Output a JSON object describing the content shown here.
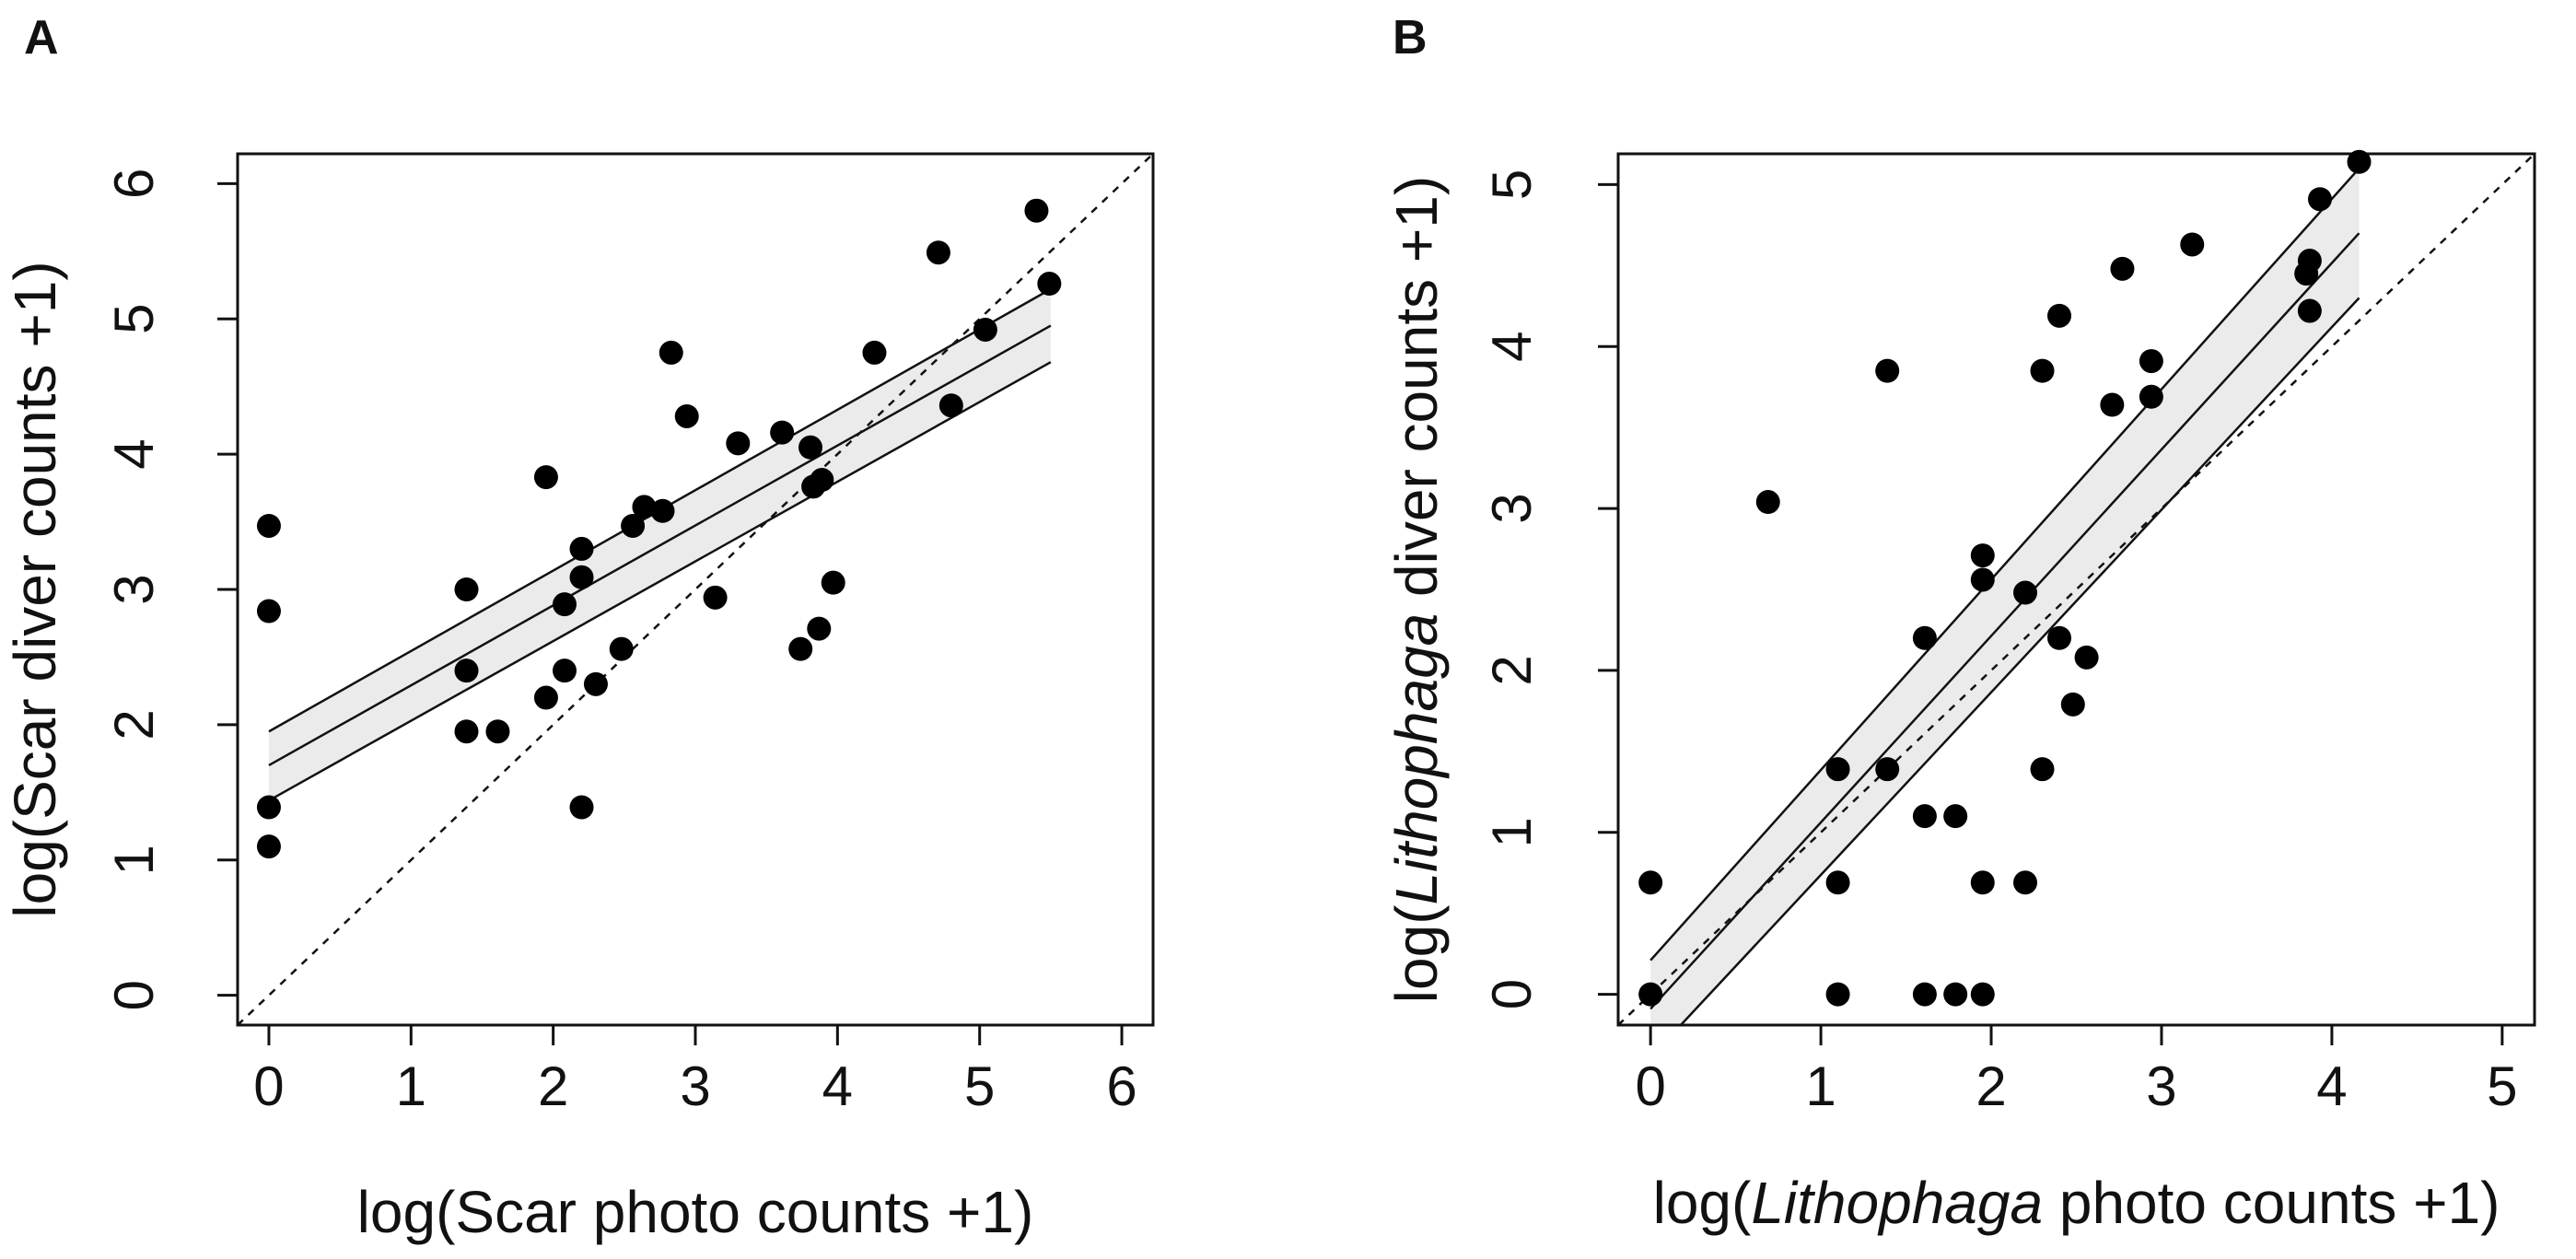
{
  "chart_data": [
    {
      "type": "scatter",
      "panel": "A",
      "xlabel": "log(Scar photo counts +1)",
      "ylabel": "log(Scar diver counts +1)",
      "xlim": [
        -0.22,
        6.22
      ],
      "ylim": [
        -0.22,
        6.22
      ],
      "x_ticks": [
        "0",
        "1",
        "2",
        "3",
        "4",
        "5",
        "6"
      ],
      "y_ticks": [
        "0",
        "1",
        "2",
        "3",
        "4",
        "5",
        "6"
      ],
      "grid": false,
      "points": [
        {
          "x": 0.0,
          "y": 3.47
        },
        {
          "x": 0.0,
          "y": 2.84
        },
        {
          "x": 0.0,
          "y": 1.39
        },
        {
          "x": 0.0,
          "y": 1.1
        },
        {
          "x": 1.39,
          "y": 3.0
        },
        {
          "x": 1.39,
          "y": 2.4
        },
        {
          "x": 1.39,
          "y": 1.95
        },
        {
          "x": 1.61,
          "y": 1.95
        },
        {
          "x": 1.95,
          "y": 3.83
        },
        {
          "x": 1.95,
          "y": 2.2
        },
        {
          "x": 2.08,
          "y": 2.89
        },
        {
          "x": 2.08,
          "y": 2.4
        },
        {
          "x": 2.2,
          "y": 3.3
        },
        {
          "x": 2.2,
          "y": 3.09
        },
        {
          "x": 2.2,
          "y": 1.39
        },
        {
          "x": 2.3,
          "y": 2.3
        },
        {
          "x": 2.48,
          "y": 2.56
        },
        {
          "x": 2.56,
          "y": 3.47
        },
        {
          "x": 2.64,
          "y": 3.61
        },
        {
          "x": 2.77,
          "y": 3.58
        },
        {
          "x": 2.83,
          "y": 4.75
        },
        {
          "x": 2.94,
          "y": 4.28
        },
        {
          "x": 3.14,
          "y": 2.94
        },
        {
          "x": 3.3,
          "y": 4.08
        },
        {
          "x": 3.61,
          "y": 4.16
        },
        {
          "x": 3.74,
          "y": 2.56
        },
        {
          "x": 3.81,
          "y": 4.05
        },
        {
          "x": 3.83,
          "y": 3.76
        },
        {
          "x": 3.87,
          "y": 2.71
        },
        {
          "x": 3.89,
          "y": 3.81
        },
        {
          "x": 3.97,
          "y": 3.05
        },
        {
          "x": 4.26,
          "y": 4.75
        },
        {
          "x": 4.71,
          "y": 5.49
        },
        {
          "x": 4.8,
          "y": 4.36
        },
        {
          "x": 5.04,
          "y": 4.92
        },
        {
          "x": 5.4,
          "y": 5.8
        },
        {
          "x": 5.49,
          "y": 5.26
        }
      ],
      "fit": {
        "x_range": [
          0.0,
          5.5
        ],
        "fit_y": [
          1.7,
          4.95
        ],
        "upper_y": [
          1.95,
          5.22
        ],
        "lower_y": [
          1.44,
          4.68
        ]
      },
      "reference_line": "y = x"
    },
    {
      "type": "scatter",
      "panel": "B",
      "xlabel_parts": [
        "log(",
        "Lithophaga",
        " photo counts +1)"
      ],
      "ylabel_parts": [
        "log(",
        "Lithophaga",
        " diver counts +1)"
      ],
      "xlim": [
        -0.19,
        5.19
      ],
      "ylim": [
        -0.19,
        5.19
      ],
      "x_ticks": [
        "0",
        "1",
        "2",
        "3",
        "4",
        "5"
      ],
      "y_ticks": [
        "0",
        "1",
        "2",
        "3",
        "4",
        "5"
      ],
      "grid": false,
      "points": [
        {
          "x": 0.0,
          "y": 0.69
        },
        {
          "x": 0.0,
          "y": 0.0
        },
        {
          "x": 0.69,
          "y": 3.04
        },
        {
          "x": 1.1,
          "y": 1.39
        },
        {
          "x": 1.1,
          "y": 0.69
        },
        {
          "x": 1.1,
          "y": 0.0
        },
        {
          "x": 1.39,
          "y": 3.85
        },
        {
          "x": 1.39,
          "y": 1.39
        },
        {
          "x": 1.61,
          "y": 2.2
        },
        {
          "x": 1.61,
          "y": 1.1
        },
        {
          "x": 1.61,
          "y": 0.0
        },
        {
          "x": 1.79,
          "y": 1.1
        },
        {
          "x": 1.79,
          "y": 0.0
        },
        {
          "x": 1.95,
          "y": 2.71
        },
        {
          "x": 1.95,
          "y": 2.56
        },
        {
          "x": 1.95,
          "y": 0.69
        },
        {
          "x": 1.95,
          "y": 0.0
        },
        {
          "x": 2.2,
          "y": 2.48
        },
        {
          "x": 2.2,
          "y": 0.69
        },
        {
          "x": 2.3,
          "y": 3.85
        },
        {
          "x": 2.3,
          "y": 1.39
        },
        {
          "x": 2.4,
          "y": 4.19
        },
        {
          "x": 2.4,
          "y": 2.2
        },
        {
          "x": 2.48,
          "y": 1.79
        },
        {
          "x": 2.56,
          "y": 2.08
        },
        {
          "x": 2.71,
          "y": 3.64
        },
        {
          "x": 2.77,
          "y": 4.48
        },
        {
          "x": 2.94,
          "y": 3.91
        },
        {
          "x": 2.94,
          "y": 3.69
        },
        {
          "x": 3.18,
          "y": 4.63
        },
        {
          "x": 3.85,
          "y": 4.45
        },
        {
          "x": 3.87,
          "y": 4.53
        },
        {
          "x": 3.87,
          "y": 4.22
        },
        {
          "x": 3.93,
          "y": 4.91
        },
        {
          "x": 4.16,
          "y": 5.14
        }
      ],
      "fit": {
        "x_range": [
          0.0,
          4.16
        ],
        "fit_y": [
          -0.09,
          4.7
        ],
        "upper_y": [
          0.21,
          5.1
        ],
        "lower_y": [
          -0.39,
          4.3
        ]
      },
      "reference_line": "y = x"
    }
  ]
}
